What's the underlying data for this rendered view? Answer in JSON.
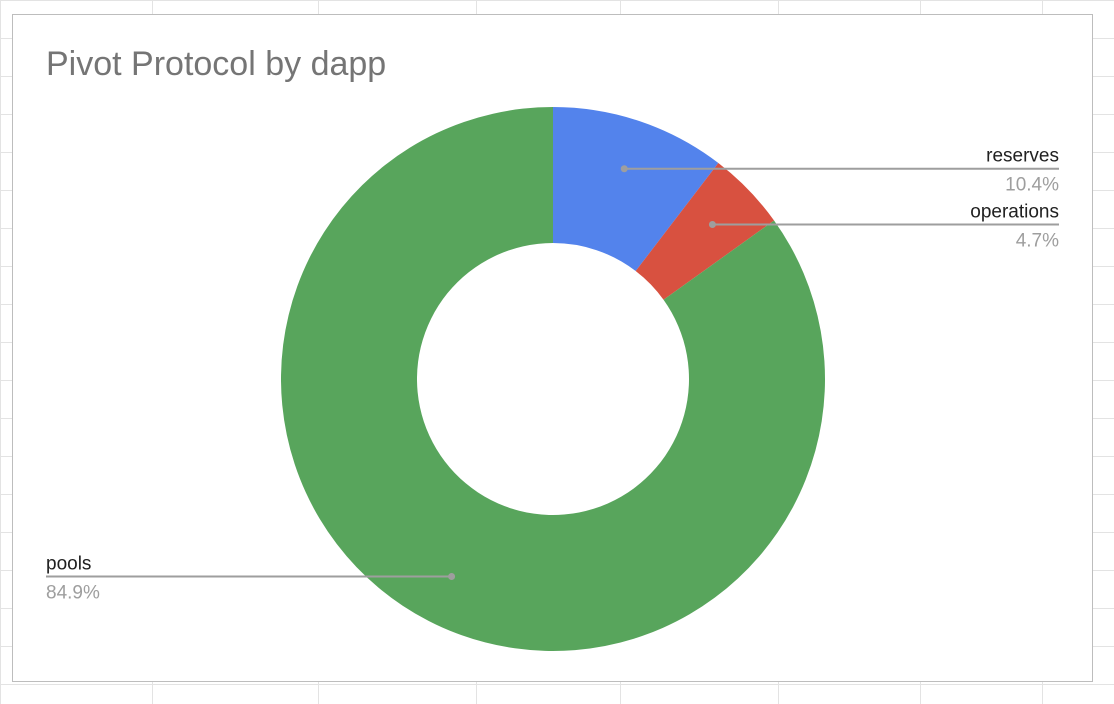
{
  "chart_data": {
    "type": "pie",
    "title": "Pivot Protocol by dapp",
    "donut": true,
    "legend": "labels beside slices",
    "slices": [
      {
        "label": "reserves",
        "percent_label": "10.4%",
        "value": 10.4,
        "color": "#5383ec"
      },
      {
        "label": "operations",
        "percent_label": "4.7%",
        "value": 4.7,
        "color": "#d85140"
      },
      {
        "label": "pools",
        "percent_label": "84.9%",
        "value": 84.9,
        "color": "#58a55c"
      }
    ]
  }
}
